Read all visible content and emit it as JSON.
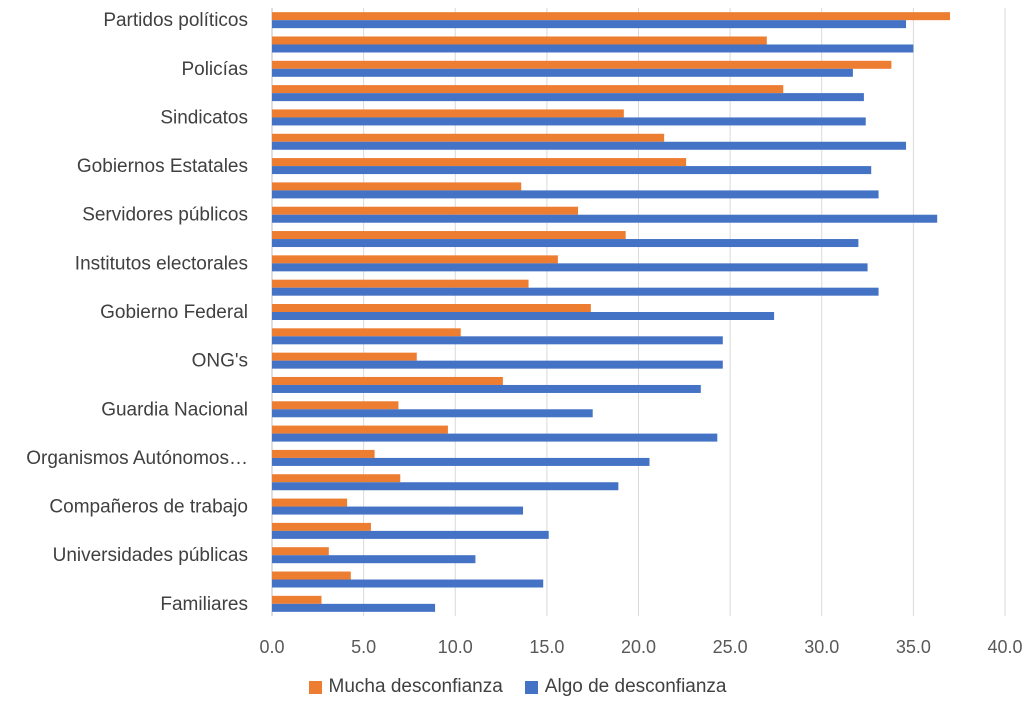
{
  "chart_data": {
    "type": "bar",
    "orientation": "horizontal",
    "title": "",
    "xlabel": "",
    "ylabel": "",
    "xlim": [
      0,
      40
    ],
    "x_ticks": [
      "0.0",
      "5.0",
      "10.0",
      "15.0",
      "20.0",
      "25.0",
      "30.0",
      "35.0",
      "40.0"
    ],
    "grid": "vertical",
    "legend_position": "bottom",
    "categories": [
      "Partidos políticos",
      "",
      "Policías",
      "",
      "Sindicatos",
      "",
      "Gobiernos Estatales",
      "",
      "Servidores públicos",
      "",
      "Institutos electorales",
      "",
      "Gobierno Federal",
      "",
      "ONG's",
      "",
      "Guardia Nacional",
      "",
      "Organismos Autónomos…",
      "",
      "Compañeros de trabajo",
      "",
      "Universidades públicas",
      "",
      "Familiares"
    ],
    "series": [
      {
        "name": "Mucha desconfianza",
        "color": "#ED7D31",
        "values": [
          37.0,
          27.0,
          33.8,
          27.9,
          19.2,
          21.4,
          22.6,
          13.6,
          16.7,
          19.3,
          15.6,
          14.0,
          17.4,
          10.3,
          7.9,
          12.6,
          6.9,
          9.6,
          5.6,
          7.0,
          4.1,
          5.4,
          3.1,
          4.3,
          2.7
        ]
      },
      {
        "name": "Algo de desconfianza",
        "color": "#4472C4",
        "values": [
          34.6,
          35.0,
          31.7,
          32.3,
          32.4,
          34.6,
          32.7,
          33.1,
          36.3,
          32.0,
          32.5,
          33.1,
          27.4,
          24.6,
          24.6,
          23.4,
          17.5,
          24.3,
          20.6,
          18.9,
          13.7,
          15.1,
          11.1,
          14.8,
          8.9
        ]
      }
    ]
  }
}
